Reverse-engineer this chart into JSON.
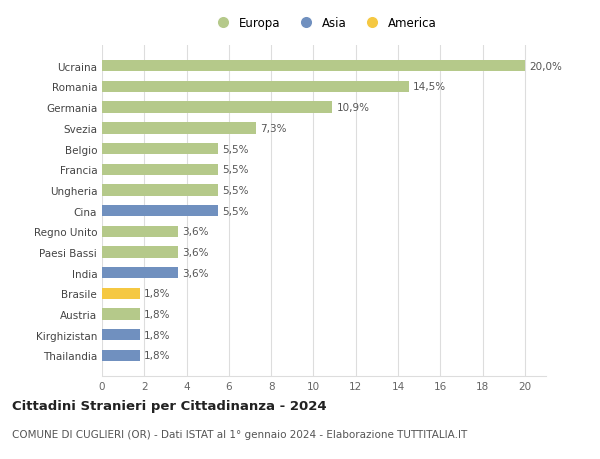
{
  "categories": [
    "Ucraina",
    "Romania",
    "Germania",
    "Svezia",
    "Belgio",
    "Francia",
    "Ungheria",
    "Cina",
    "Regno Unito",
    "Paesi Bassi",
    "India",
    "Brasile",
    "Austria",
    "Kirghizistan",
    "Thailandia"
  ],
  "values": [
    20.0,
    14.5,
    10.9,
    7.3,
    5.5,
    5.5,
    5.5,
    5.5,
    3.6,
    3.6,
    3.6,
    1.8,
    1.8,
    1.8,
    1.8
  ],
  "labels": [
    "20,0%",
    "14,5%",
    "10,9%",
    "7,3%",
    "5,5%",
    "5,5%",
    "5,5%",
    "5,5%",
    "3,6%",
    "3,6%",
    "3,6%",
    "1,8%",
    "1,8%",
    "1,8%",
    "1,8%"
  ],
  "continents": [
    "Europa",
    "Europa",
    "Europa",
    "Europa",
    "Europa",
    "Europa",
    "Europa",
    "Asia",
    "Europa",
    "Europa",
    "Asia",
    "America",
    "Europa",
    "Asia",
    "Asia"
  ],
  "colors": {
    "Europa": "#b5c98a",
    "Asia": "#7090bf",
    "America": "#f5c842"
  },
  "xlim": [
    0,
    21
  ],
  "xticks": [
    0,
    2,
    4,
    6,
    8,
    10,
    12,
    14,
    16,
    18,
    20
  ],
  "title": "Cittadini Stranieri per Cittadinanza - 2024",
  "subtitle": "COMUNE DI CUGLIERI (OR) - Dati ISTAT al 1° gennaio 2024 - Elaborazione TUTTITALIA.IT",
  "background_color": "#ffffff",
  "grid_color": "#dddddd",
  "label_fontsize": 7.5,
  "tick_fontsize": 7.5,
  "title_fontsize": 9.5,
  "subtitle_fontsize": 7.5,
  "legend_fontsize": 8.5,
  "bar_height": 0.55
}
